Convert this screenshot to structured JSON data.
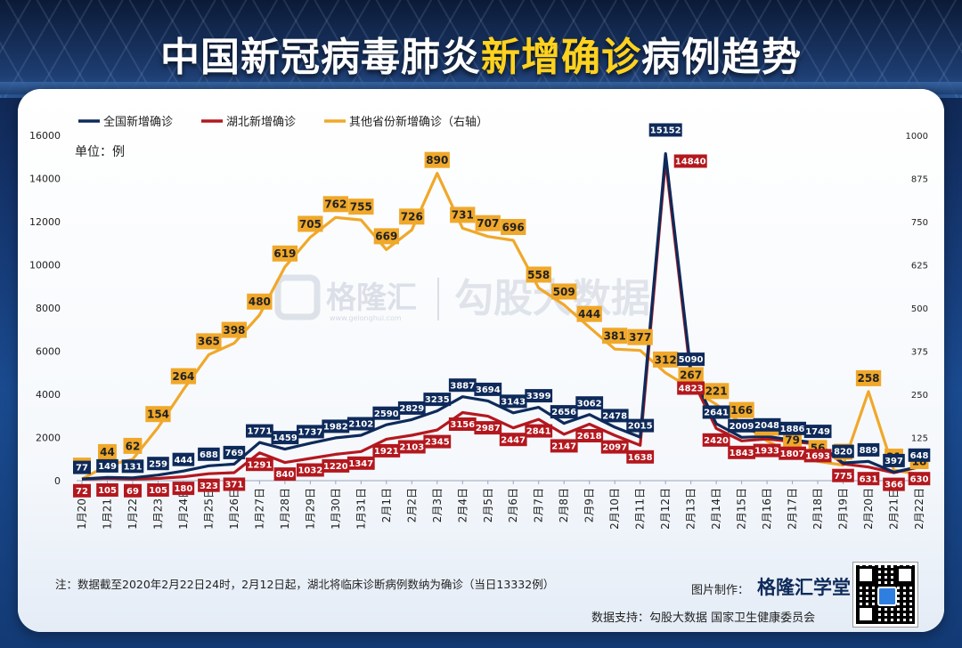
{
  "header": {
    "title_part1": "中国新冠病毒肺炎",
    "title_highlight": "新增确诊",
    "title_part2": "病例趋势"
  },
  "colors": {
    "national": "#0e2a5a",
    "hubei": "#b3181e",
    "other": "#f0a82a"
  },
  "watermark": {
    "brand1": "格隆汇",
    "brand1_url": "www.gelonghui.com",
    "brand2": "勾股大数据"
  },
  "footer": {
    "note": "注：数据截至2020年2月22日24时，2月12日起，湖北将临床诊断病例数纳为确诊（当日13332例）",
    "credit_label": "图片制作：",
    "credit_brand": "格隆汇学堂",
    "source": "数据支持：勾股大数据  国家卫生健康委员会"
  },
  "chart_data": {
    "type": "line",
    "unit_label": "单位：例",
    "left_axis": {
      "ylim": [
        0,
        16000
      ],
      "ticks": [
        "0",
        "2000",
        "4000",
        "6000",
        "8000",
        "10000",
        "12000",
        "14000",
        "16000"
      ]
    },
    "right_axis": {
      "ylim": [
        0,
        1000
      ],
      "ticks": [
        "0",
        "125",
        "250",
        "375",
        "500",
        "625",
        "750",
        "875",
        "1000"
      ]
    },
    "legend_position": "top-left",
    "categories": [
      "1月20日",
      "1月21日",
      "1月22日",
      "1月23日",
      "1月24日",
      "1月25日",
      "1月26日",
      "1月27日",
      "1月28日",
      "1月29日",
      "1月30日",
      "1月31日",
      "2月1日",
      "2月2日",
      "2月3日",
      "2月4日",
      "2月5日",
      "2月6日",
      "2月7日",
      "2月8日",
      "2月9日",
      "2月10日",
      "2月11日",
      "2月12日",
      "2月13日",
      "2月14日",
      "2月15日",
      "2月16日",
      "2月17日",
      "2月18日",
      "2月19日",
      "2月20日",
      "2月21日",
      "2月22日"
    ],
    "series": [
      {
        "name": "全国新增确诊",
        "axis": "left",
        "values": [
          77,
          149,
          131,
          259,
          444,
          688,
          769,
          1771,
          1459,
          1737,
          1982,
          2102,
          2590,
          2829,
          3235,
          3887,
          3694,
          3143,
          3399,
          2656,
          3062,
          2478,
          2015,
          15152,
          5090,
          2641,
          2009,
          2048,
          1886,
          1749,
          820,
          889,
          397,
          648
        ]
      },
      {
        "name": "湖北新增确诊",
        "axis": "left",
        "values": [
          72,
          105,
          69,
          105,
          180,
          323,
          371,
          1291,
          840,
          1032,
          1220,
          1347,
          1921,
          2103,
          2345,
          3156,
          2987,
          2447,
          2841,
          2147,
          2618,
          2097,
          1638,
          14840,
          4823,
          2420,
          1843,
          1933,
          1807,
          1693,
          775,
          631,
          366,
          630
        ]
      },
      {
        "name": "其他省份新增确诊（右轴）",
        "axis": "right",
        "values": [
          5,
          44,
          62,
          154,
          264,
          365,
          398,
          480,
          619,
          705,
          762,
          755,
          669,
          726,
          890,
          731,
          707,
          696,
          558,
          509,
          444,
          381,
          377,
          312,
          267,
          221,
          166,
          115,
          79,
          56,
          45,
          258,
          31,
          18
        ]
      }
    ],
    "data_labels": {
      "national": [
        "77",
        "149",
        "131",
        "259",
        "444",
        "688",
        "769",
        "1771",
        "1459",
        "1737",
        "1982",
        "2102",
        "2590",
        "2829",
        "3235",
        "3887",
        "3694",
        "3143",
        "3399",
        "2656",
        "3062",
        "2478",
        "2015",
        "15152",
        "5090",
        "2641",
        "2009",
        "2048",
        "1886",
        "1749",
        "820",
        "889",
        "397",
        "648"
      ],
      "hubei": [
        "72",
        "105",
        "69",
        "105",
        "180",
        "323",
        "371",
        "1291",
        "840",
        "1032",
        "1220",
        "1347",
        "1921",
        "2103",
        "2345",
        "3156",
        "2987",
        "2447",
        "2841",
        "2147",
        "2618",
        "2097",
        "1638",
        "14840",
        "4823",
        "2420",
        "1843",
        "1933",
        "1807",
        "1693",
        "775",
        "631",
        "366",
        "630"
      ],
      "other": [
        "5",
        "44",
        "62",
        "154",
        "264",
        "365",
        "398",
        "480",
        "619",
        "705",
        "762",
        "755",
        "669",
        "726",
        "890",
        "731",
        "707",
        "696",
        "558",
        "509",
        "444",
        "381",
        "377",
        "312",
        "267",
        "221",
        "166",
        "115",
        "79",
        "56",
        "45",
        "258",
        "31",
        "18"
      ]
    }
  }
}
